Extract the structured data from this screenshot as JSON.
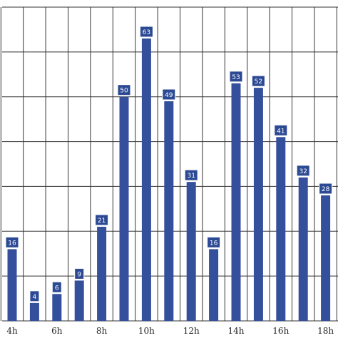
{
  "chart_data": {
    "type": "bar",
    "categories": [
      "4h",
      "5h",
      "6h",
      "7h",
      "8h",
      "9h",
      "10h",
      "11h",
      "12h",
      "13h",
      "14h",
      "15h",
      "16h",
      "17h",
      "18h"
    ],
    "tick_labels": [
      "4h",
      "",
      "6h",
      "",
      "8h",
      "",
      "10h",
      "",
      "12h",
      "",
      "14h",
      "",
      "16h",
      "",
      "18h"
    ],
    "values": [
      16,
      4,
      6,
      9,
      21,
      50,
      63,
      49,
      31,
      16,
      53,
      52,
      41,
      32,
      28
    ],
    "title": "",
    "xlabel": "",
    "ylabel": "",
    "ylim": [
      0,
      70
    ],
    "grid": true,
    "legend": "none",
    "colors": {
      "bar": "#34509c",
      "label_box": "#2c4a94",
      "label_text": "#ffffff",
      "grid": "#333333",
      "background": "#ffffff"
    }
  }
}
